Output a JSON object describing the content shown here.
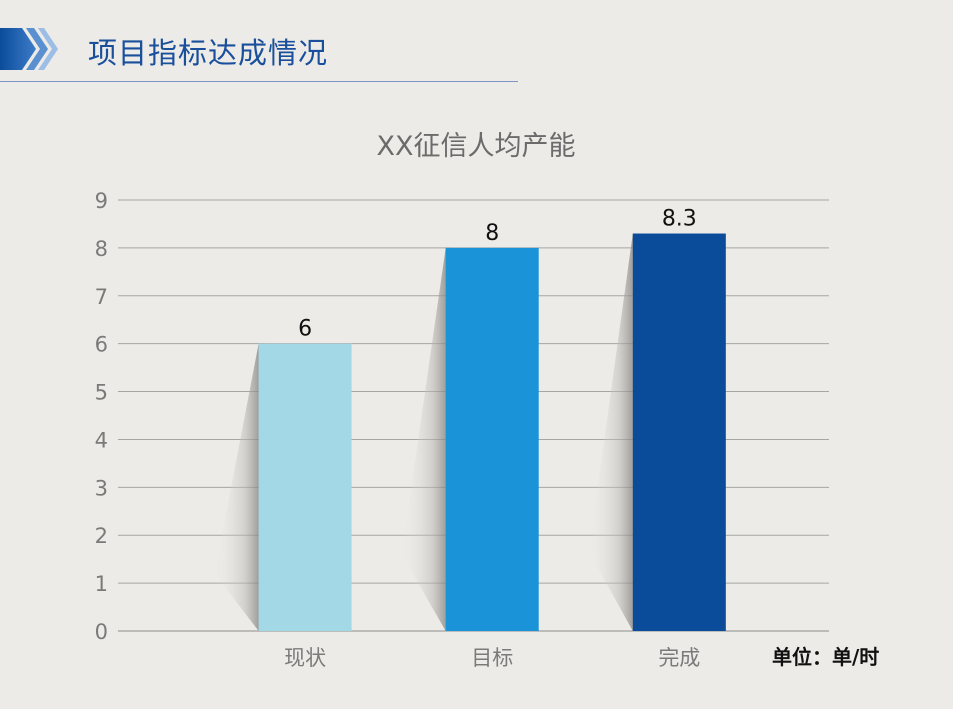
{
  "header": {
    "title": "项目指标达成情况"
  },
  "unit_label": "单位：单/时",
  "chart_data": {
    "type": "bar",
    "title": "XX征信人均产能",
    "categories": [
      "现状",
      "目标",
      "完成"
    ],
    "values": [
      6,
      8,
      8.3
    ],
    "data_labels": [
      "6",
      "8",
      "8.3"
    ],
    "colors": [
      "#a3d9e6",
      "#1b93d8",
      "#0b4c9a"
    ],
    "ylim": [
      0,
      9
    ],
    "yticks": [
      0,
      1,
      2,
      3,
      4,
      5,
      6,
      7,
      8,
      9
    ],
    "grid": true,
    "legend": "none"
  }
}
